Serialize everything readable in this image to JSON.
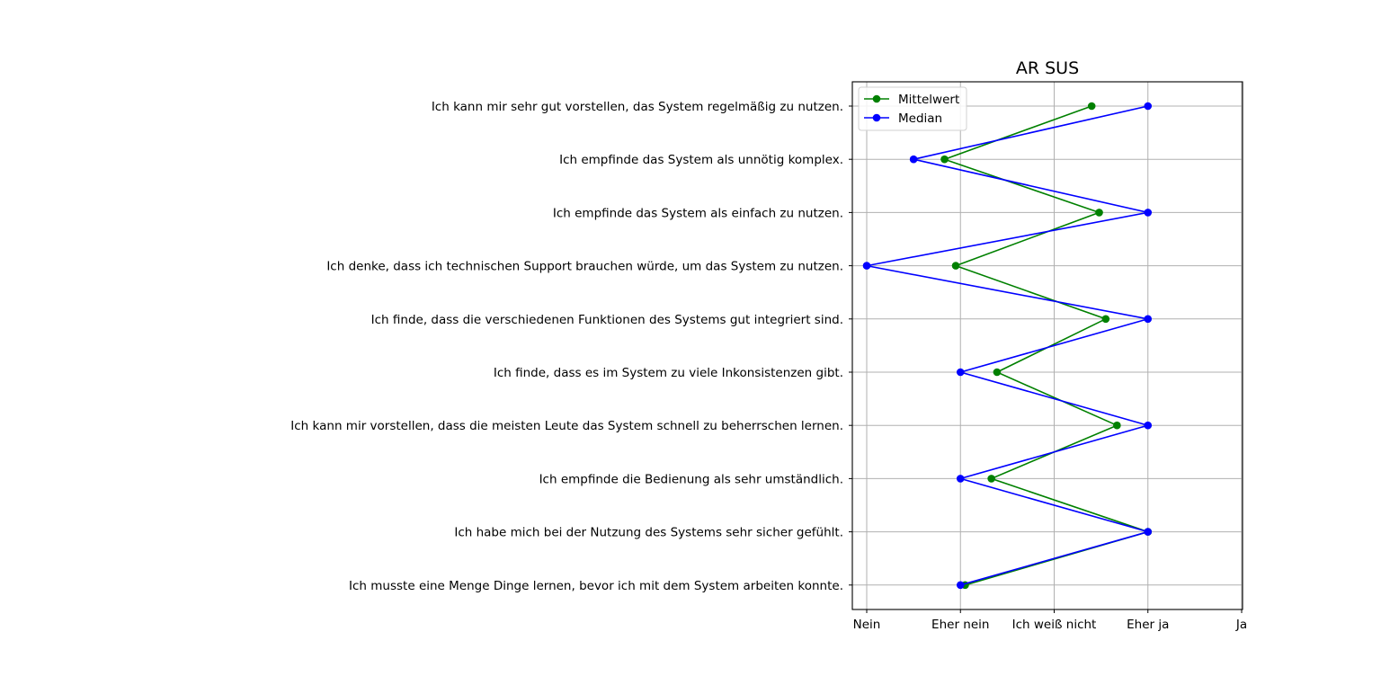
{
  "chart_data": {
    "type": "line",
    "title": "AR SUS",
    "xlabel": "",
    "ylabel": "",
    "x_ticks": [
      "Nein",
      "Eher nein",
      "Ich weiß nicht",
      "Eher ja",
      "Ja"
    ],
    "xlim": [
      1,
      5
    ],
    "grid": true,
    "legend_position": "top-left",
    "categories": [
      "Ich kann mir sehr gut vorstellen, das System regelmäßig zu nutzen.",
      "Ich empfinde das System als unnötig komplex.",
      "Ich empfinde das System als einfach zu nutzen.",
      "Ich denke, dass ich technischen Support brauchen würde, um das System zu nutzen.",
      "Ich finde, dass die verschiedenen Funktionen des Systems gut integriert sind.",
      "Ich finde, dass es im System zu viele Inkonsistenzen gibt.",
      "Ich kann mir vorstellen, dass die meisten Leute das System schnell zu beherrschen lernen.",
      "Ich empfinde die Bedienung als sehr umständlich.",
      "Ich habe mich bei der Nutzung des Systems sehr sicher gefühlt.",
      "Ich musste eine Menge Dinge lernen, bevor ich mit dem System arbeiten konnte."
    ],
    "series": [
      {
        "name": "Mittelwert",
        "color": "#008000",
        "values": [
          3.4,
          1.83,
          3.48,
          1.95,
          3.55,
          2.39,
          3.67,
          2.33,
          4.0,
          2.05
        ]
      },
      {
        "name": "Median",
        "color": "#0000ff",
        "values": [
          4.0,
          1.5,
          4.0,
          1.0,
          4.0,
          2.0,
          4.0,
          2.0,
          4.0,
          2.0
        ]
      }
    ]
  }
}
